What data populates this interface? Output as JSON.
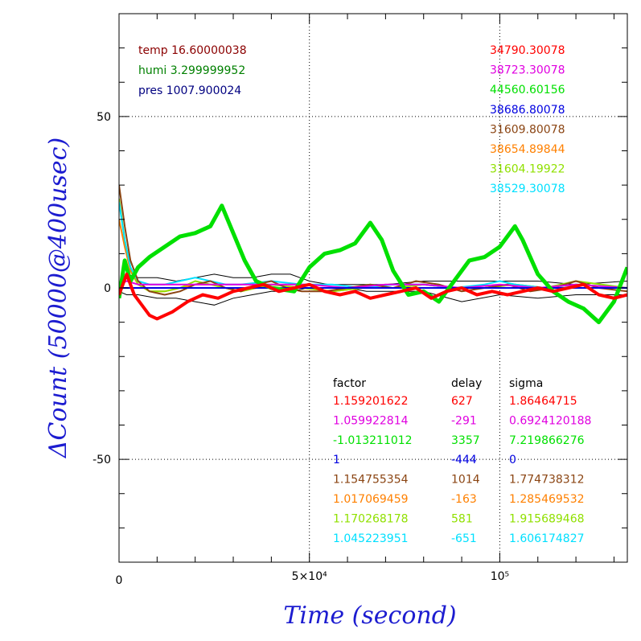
{
  "chart_data": {
    "type": "line",
    "xlabel": "Time (second)",
    "ylabel": "ΔCount (50000@400usec)",
    "xlim": [
      0,
      133500
    ],
    "ylim": [
      -80,
      80
    ],
    "x_ticks": [
      {
        "value": 0,
        "label": "0"
      },
      {
        "value": 50000,
        "label": "5×10⁴"
      },
      {
        "value": 100000,
        "label": "10⁵"
      }
    ],
    "y_ticks": [
      {
        "value": 50,
        "label": "50"
      },
      {
        "value": 0,
        "label": "0"
      },
      {
        "value": -50,
        "label": "-50"
      }
    ],
    "environment": [
      {
        "text": "temp 16.60000038",
        "color": "#8b0000"
      },
      {
        "text": "humi 3.299999952",
        "color": "#008000"
      },
      {
        "text": "pres 1007.900024",
        "color": "#000080"
      }
    ],
    "table_headers": {
      "factor": "factor",
      "delay": "delay",
      "sigma": "sigma"
    },
    "series": [
      {
        "color": "#ff0000",
        "mean": "34790.30078",
        "factor": "1.159201622",
        "delay": "627",
        "sigma": "1.86464715",
        "x": [
          0,
          2000,
          4000,
          6000,
          8000,
          10000,
          14000,
          18000,
          22000,
          26000,
          30000,
          34000,
          38000,
          42000,
          46000,
          50000,
          54000,
          58000,
          62000,
          66000,
          70000,
          74000,
          78000,
          82000,
          86000,
          90000,
          94000,
          98000,
          102000,
          106000,
          110000,
          114000,
          118000,
          122000,
          126000,
          130000,
          133500
        ],
        "y": [
          -2,
          4,
          -2,
          -5,
          -8,
          -9,
          -7,
          -4,
          -2,
          -3,
          -1,
          0,
          1,
          -1,
          0,
          1,
          -1,
          -2,
          -1,
          -3,
          -2,
          -1,
          0,
          -3,
          -1,
          0,
          -2,
          -1,
          -2,
          -1,
          0,
          -1,
          0,
          1,
          -2,
          -3,
          -2
        ]
      },
      {
        "color": "#e000e0",
        "mean": "38723.30078",
        "factor": "1.059922814",
        "delay": "-291",
        "sigma": "0.6924120188",
        "x": [
          0,
          2000,
          5000,
          10000,
          20000,
          30000,
          40000,
          50000,
          60000,
          70000,
          80000,
          90000,
          100000,
          110000,
          120000,
          133500
        ],
        "y": [
          1,
          2,
          1,
          1,
          1,
          1,
          1,
          1,
          0,
          1,
          1,
          0,
          1,
          0,
          1,
          0
        ]
      },
      {
        "color": "#00e000",
        "mean": "44560.60156",
        "factor": "-1.013211012",
        "delay": "3357",
        "sigma": "7.219866276",
        "x": [
          0,
          1500,
          3000,
          5000,
          8000,
          12000,
          16000,
          20000,
          24000,
          27000,
          30000,
          33000,
          36000,
          40000,
          46000,
          50000,
          54000,
          58000,
          62000,
          66000,
          69000,
          72000,
          76000,
          80000,
          84000,
          88000,
          92000,
          96000,
          100000,
          104000,
          106000,
          110000,
          114000,
          118000,
          122000,
          126000,
          130000,
          133500
        ],
        "y": [
          -3,
          8,
          2,
          6,
          9,
          12,
          15,
          16,
          18,
          24,
          16,
          8,
          2,
          0,
          -1,
          6,
          10,
          11,
          13,
          19,
          14,
          5,
          -2,
          -1,
          -4,
          2,
          8,
          9,
          12,
          18,
          14,
          4,
          -1,
          -4,
          -6,
          -10,
          -4,
          6
        ]
      },
      {
        "color": "#0000e0",
        "mean": "38686.80078",
        "factor": "1",
        "delay": "-444",
        "sigma": "0",
        "x": [
          0,
          133500
        ],
        "y": [
          0,
          0
        ]
      },
      {
        "color": "#8b4513",
        "mean": "31609.80078",
        "factor": "1.154755354",
        "delay": "1014",
        "sigma": "1.774738312",
        "x": [
          0,
          1500,
          3000,
          5000,
          8000,
          12000,
          16000,
          20000,
          24000,
          28000,
          32000,
          36000,
          40000,
          44000,
          48000,
          54000,
          60000,
          66000,
          72000,
          78000,
          84000,
          90000,
          96000,
          102000,
          108000,
          114000,
          120000,
          126000,
          133500
        ],
        "y": [
          30,
          18,
          8,
          2,
          -1,
          -2,
          -1,
          1,
          2,
          0,
          -1,
          1,
          2,
          0,
          -1,
          -1,
          0,
          1,
          0,
          2,
          1,
          -1,
          0,
          1,
          -1,
          0,
          2,
          0,
          -1
        ]
      },
      {
        "color": "#ff8000",
        "mean": "38654.89844",
        "factor": "1.017069459",
        "delay": "-163",
        "sigma": "1.285469532",
        "x": [
          0,
          1500,
          3000,
          5000,
          8000,
          12000,
          16000,
          20000,
          24000,
          28000,
          32000,
          36000,
          40000,
          48000,
          56000,
          64000,
          72000,
          80000,
          88000,
          96000,
          104000,
          112000,
          120000,
          133500
        ],
        "y": [
          20,
          12,
          5,
          1,
          -1,
          -1,
          0,
          1,
          1,
          0,
          -1,
          0,
          1,
          0,
          -1,
          0,
          0,
          1,
          0,
          0,
          1,
          0,
          1,
          0
        ]
      },
      {
        "color": "#90e000",
        "mean": "31604.19922",
        "factor": "1.170268178",
        "delay": "581",
        "sigma": "1.915689468",
        "x": [
          0,
          1500,
          3000,
          5000,
          8000,
          12000,
          16000,
          20000,
          24000,
          28000,
          32000,
          36000,
          40000,
          48000,
          56000,
          64000,
          72000,
          80000,
          88000,
          96000,
          104000,
          112000,
          120000,
          133500
        ],
        "y": [
          26,
          14,
          6,
          1,
          -1,
          -1,
          0,
          2,
          1,
          0,
          -1,
          0,
          1,
          0,
          -1,
          0,
          0,
          1,
          0,
          0,
          1,
          0,
          2,
          0
        ]
      },
      {
        "color": "#00e0ff",
        "mean": "38529.30078",
        "factor": "1.045223951",
        "delay": "-651",
        "sigma": "1.606174827",
        "x": [
          0,
          1500,
          3000,
          5000,
          8000,
          12000,
          16000,
          20000,
          24000,
          28000,
          32000,
          40000,
          48000,
          56000,
          64000,
          72000,
          80000,
          88000,
          96000,
          100000,
          104000,
          112000,
          120000,
          133500
        ],
        "y": [
          25,
          14,
          6,
          2,
          1,
          1,
          2,
          3,
          2,
          1,
          1,
          2,
          1,
          1,
          0,
          1,
          1,
          0,
          1,
          2,
          1,
          0,
          1,
          0
        ]
      }
    ],
    "extra_series": [
      {
        "color": "#000000",
        "x": [
          0,
          2000,
          5000,
          10000,
          15000,
          20000,
          25000,
          30000,
          35000,
          40000,
          45000,
          50000,
          55000,
          60000,
          65000,
          70000,
          80000,
          90000,
          100000,
          110000,
          120000,
          133500
        ],
        "y": [
          1,
          4,
          3,
          3,
          2,
          3,
          4,
          3,
          3,
          4,
          4,
          2,
          1,
          1,
          1,
          1,
          2,
          2,
          2,
          2,
          1,
          2
        ]
      },
      {
        "color": "#000000",
        "x": [
          0,
          2000,
          5000,
          10000,
          15000,
          20000,
          25000,
          30000,
          35000,
          40000,
          45000,
          50000,
          55000,
          60000,
          65000,
          70000,
          80000,
          90000,
          100000,
          110000,
          120000,
          133500
        ],
        "y": [
          -1,
          -2,
          -2,
          -3,
          -3,
          -4,
          -5,
          -3,
          -2,
          -1,
          -1,
          0,
          0,
          0,
          -1,
          -1,
          -1,
          -4,
          -2,
          -3,
          -2,
          -2
        ]
      }
    ]
  }
}
